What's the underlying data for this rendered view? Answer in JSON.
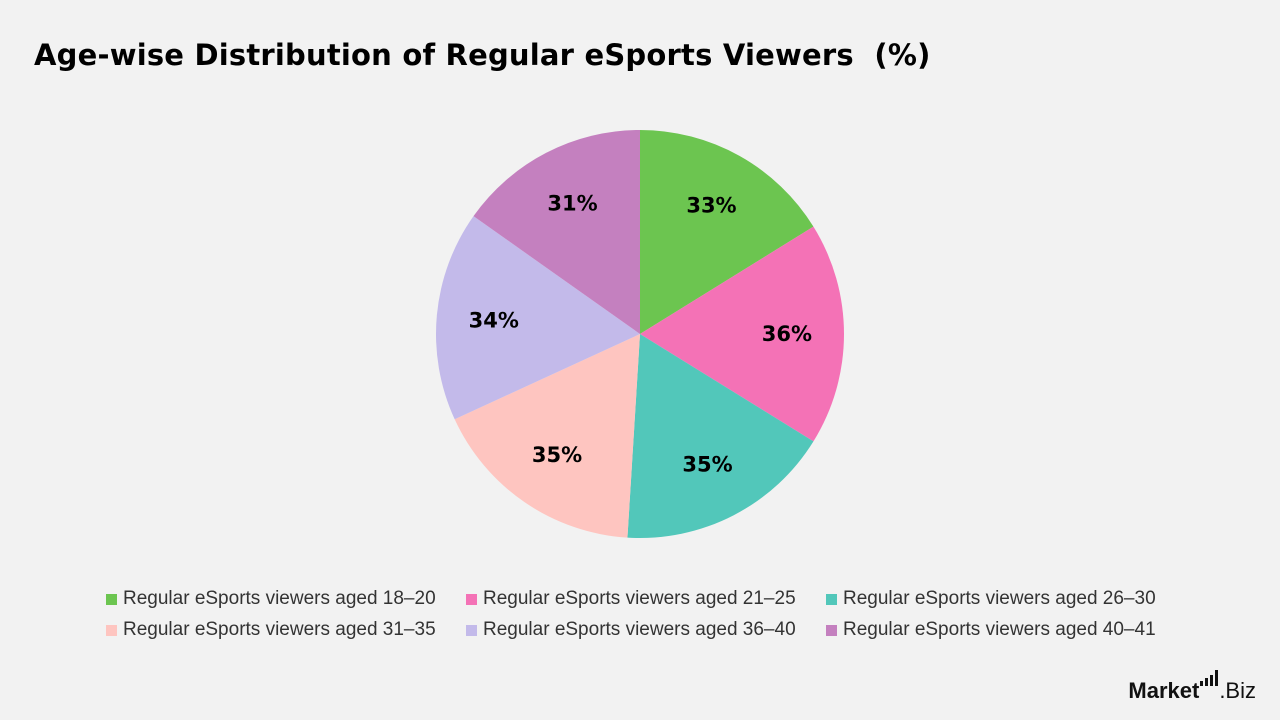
{
  "chart_data": {
    "type": "pie",
    "title": "Age-wise Distribution of Regular eSports Viewers  (%)",
    "start_angle_deg": 0,
    "direction": "clockwise",
    "labels": [
      "Regular eSports viewers aged 18–20",
      "Regular eSports viewers aged 21–25",
      "Regular eSports viewers aged 26–30",
      "Regular eSports viewers aged 31–35",
      "Regular eSports viewers aged 36–40",
      "Regular eSports viewers aged 40–41"
    ],
    "values": [
      33,
      36,
      35,
      35,
      34,
      31
    ],
    "data_labels": [
      "33%",
      "36%",
      "35%",
      "35%",
      "34%",
      "31%"
    ],
    "colors": [
      "#6cc550",
      "#f472b6",
      "#52c7ba",
      "#fec5c0",
      "#c3baea",
      "#c480bf"
    ],
    "legend_position": "bottom"
  },
  "branding": {
    "logo_part1": "Market",
    "logo_part2": ".Biz"
  }
}
